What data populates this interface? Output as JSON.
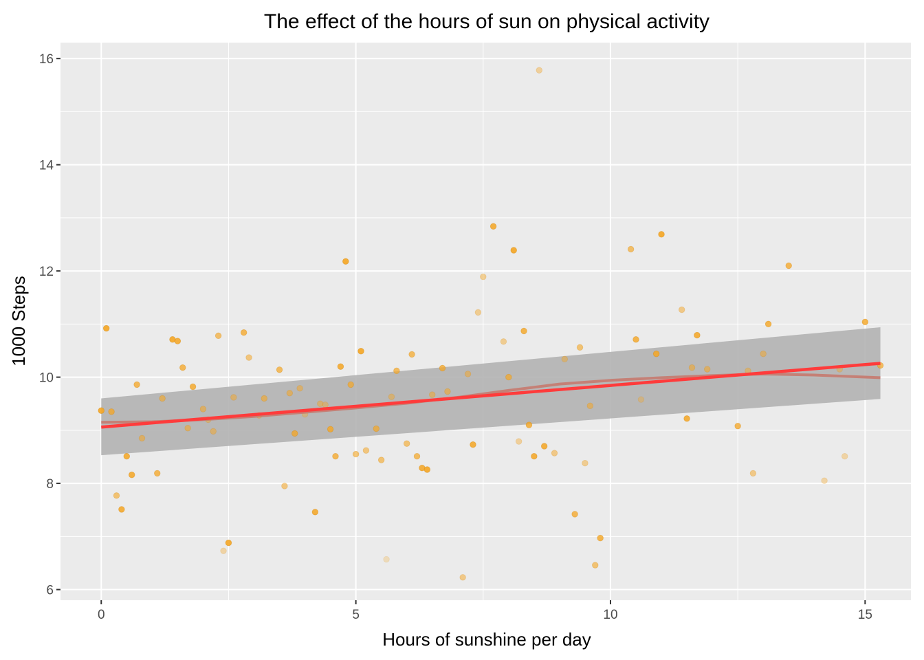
{
  "chart_data": {
    "type": "scatter",
    "title": "The effect of the hours of sun on physical activity",
    "xlabel": "Hours of sunshine per day",
    "ylabel": "1000 Steps",
    "xlim": [
      -0.8,
      15.9
    ],
    "ylim": [
      5.8,
      16.3
    ],
    "x_ticks": [
      0,
      5,
      10,
      15
    ],
    "x_tick_labels": [
      "0",
      "5",
      "10",
      "15"
    ],
    "y_ticks": [
      6,
      8,
      10,
      12,
      14,
      16
    ],
    "y_tick_labels": [
      "6",
      "8",
      "10",
      "12",
      "14",
      "16"
    ],
    "grid": true,
    "panel_color": "#ebebeb",
    "grid_color": "#ffffff",
    "point_color": "#f5a623",
    "linear_fit_color": "#ff3b3b",
    "loess_fit_color": "#c77a6f",
    "confidence_band_color": "#b3b3b3",
    "series": [
      {
        "type": "scatter",
        "x": [
          0.0,
          0.1,
          0.2,
          0.3,
          0.4,
          0.5,
          0.6,
          0.7,
          0.8,
          1.1,
          1.2,
          1.4,
          1.5,
          1.6,
          1.7,
          1.8,
          2.0,
          2.1,
          2.2,
          2.3,
          2.4,
          2.5,
          2.6,
          2.8,
          2.9,
          3.1,
          3.2,
          3.5,
          3.6,
          3.7,
          3.8,
          3.9,
          4.0,
          4.2,
          4.3,
          4.4,
          4.5,
          4.6,
          4.7,
          4.8,
          4.9,
          5.0,
          5.1,
          5.2,
          5.4,
          5.5,
          5.6,
          5.7,
          5.8,
          6.0,
          6.1,
          6.2,
          6.3,
          6.4,
          6.5,
          6.7,
          6.8,
          7.1,
          7.2,
          7.3,
          7.4,
          7.5,
          7.7,
          7.9,
          8.0,
          8.1,
          8.2,
          8.3,
          8.4,
          8.5,
          8.6,
          8.7,
          8.9,
          9.1,
          9.3,
          9.4,
          9.5,
          9.6,
          9.7,
          9.8,
          10.4,
          10.5,
          10.6,
          10.9,
          11.0,
          11.4,
          11.5,
          11.6,
          11.7,
          11.9,
          12.5,
          12.7,
          12.8,
          13.0,
          13.1,
          13.5,
          14.2,
          14.5,
          14.6,
          15.0,
          15.3
        ],
        "y": [
          9.37,
          10.92,
          9.35,
          7.77,
          7.51,
          8.51,
          8.16,
          9.86,
          8.85,
          8.19,
          9.6,
          10.71,
          10.68,
          10.18,
          9.04,
          9.82,
          9.4,
          9.2,
          8.98,
          10.78,
          6.73,
          6.88,
          9.62,
          10.84,
          10.37,
          9.28,
          9.6,
          10.14,
          7.95,
          9.7,
          8.94,
          9.79,
          9.3,
          7.46,
          9.5,
          9.48,
          9.02,
          8.51,
          10.2,
          12.18,
          9.86,
          8.55,
          10.49,
          8.62,
          9.03,
          8.44,
          6.57,
          9.63,
          10.12,
          8.75,
          10.43,
          8.51,
          8.29,
          8.26,
          9.67,
          10.17,
          9.73,
          6.23,
          10.06,
          8.73,
          11.22,
          11.89,
          12.84,
          10.67,
          10.0,
          12.39,
          8.79,
          10.87,
          9.1,
          8.51,
          15.78,
          8.7,
          8.57,
          10.34,
          7.42,
          10.56,
          8.38,
          9.46,
          6.46,
          6.97,
          12.41,
          10.71,
          9.58,
          10.44,
          12.69,
          11.27,
          9.22,
          10.18,
          10.79,
          10.15,
          9.08,
          10.12,
          8.19,
          10.44,
          11.0,
          12.1,
          8.05,
          10.15,
          8.51,
          11.04,
          10.22
        ],
        "alpha": [
          0.9,
          0.9,
          0.75,
          0.6,
          0.85,
          0.85,
          0.85,
          0.75,
          0.55,
          0.75,
          0.6,
          0.9,
          0.85,
          0.75,
          0.55,
          0.8,
          0.55,
          0.45,
          0.5,
          0.65,
          0.35,
          0.9,
          0.5,
          0.75,
          0.55,
          0.45,
          0.6,
          0.7,
          0.55,
          0.55,
          0.75,
          0.5,
          0.35,
          0.85,
          0.45,
          0.4,
          0.8,
          0.75,
          0.85,
          0.9,
          0.7,
          0.6,
          0.9,
          0.55,
          0.7,
          0.6,
          0.25,
          0.45,
          0.7,
          0.6,
          0.7,
          0.7,
          0.85,
          0.9,
          0.5,
          0.75,
          0.55,
          0.5,
          0.5,
          0.85,
          0.45,
          0.45,
          0.85,
          0.45,
          0.7,
          0.9,
          0.4,
          0.8,
          0.8,
          0.85,
          0.4,
          0.85,
          0.5,
          0.45,
          0.75,
          0.6,
          0.45,
          0.55,
          0.6,
          0.8,
          0.65,
          0.8,
          0.35,
          0.85,
          0.9,
          0.5,
          0.85,
          0.55,
          0.85,
          0.55,
          0.75,
          0.45,
          0.5,
          0.5,
          0.8,
          0.75,
          0.35,
          0.4,
          0.35,
          0.8,
          0.7
        ]
      },
      {
        "type": "line",
        "x": [
          0.0,
          15.3
        ],
        "y": [
          9.06,
          10.26
        ]
      },
      {
        "type": "line",
        "x": [
          0.0,
          1.0,
          2.0,
          3.0,
          4.0,
          5.0,
          6.0,
          7.0,
          8.0,
          9.0,
          10.0,
          11.0,
          12.0,
          13.0,
          14.0,
          15.3
        ],
        "y": [
          9.15,
          9.16,
          9.2,
          9.26,
          9.34,
          9.42,
          9.51,
          9.62,
          9.75,
          9.87,
          9.94,
          9.99,
          10.03,
          10.06,
          10.04,
          9.99
        ]
      },
      {
        "type": "area",
        "x": [
          0.0,
          15.3
        ],
        "y_lower": [
          8.53,
          9.59
        ],
        "y_upper": [
          9.6,
          10.94
        ]
      }
    ]
  }
}
